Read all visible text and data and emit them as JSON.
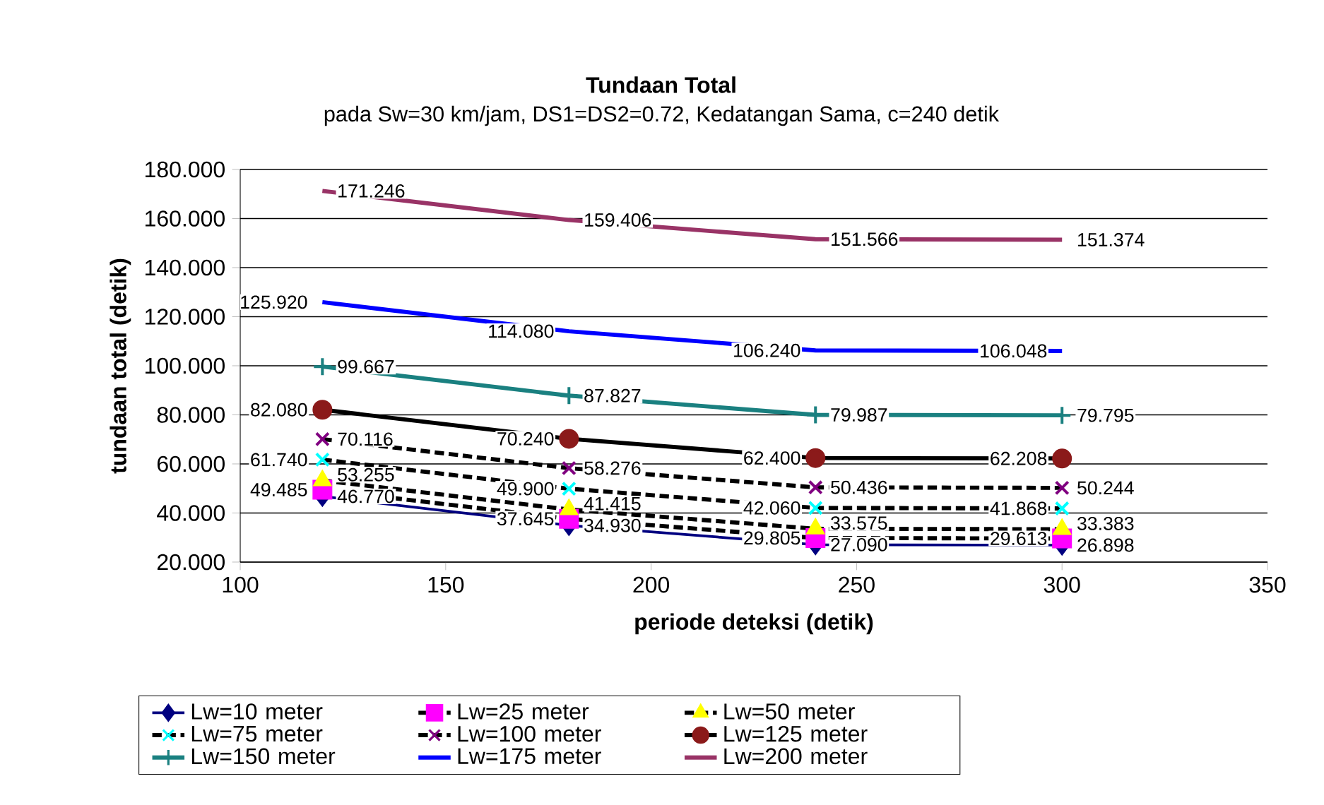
{
  "chart_data": {
    "type": "line",
    "title": "Tundaan Total",
    "subtitle": "pada Sw=30 km/jam, DS1=DS2=0.72, Kedatangan Sama, c=240 detik",
    "xlabel": "periode deteksi (detik)",
    "ylabel": "tundaan total (detik)",
    "x": [
      120,
      180,
      240,
      300
    ],
    "xlim": [
      100,
      350
    ],
    "xticks": [
      100,
      150,
      200,
      250,
      300,
      350
    ],
    "ylim": [
      20,
      180
    ],
    "yticks": [
      {
        "value": 20,
        "label": "20.000"
      },
      {
        "value": 40,
        "label": "40.000"
      },
      {
        "value": 60,
        "label": "60.000"
      },
      {
        "value": 80,
        "label": "80.000"
      },
      {
        "value": 100,
        "label": "100.000"
      },
      {
        "value": 120,
        "label": "120.000"
      },
      {
        "value": 140,
        "label": "140.000"
      },
      {
        "value": 160,
        "label": "160.000"
      },
      {
        "value": 180,
        "label": "180.000"
      }
    ],
    "grid": "y",
    "legend": "bottom",
    "series": [
      {
        "name": "Lw=10 meter",
        "color": "#000080",
        "colors": [
          "#000080",
          "#000080",
          "#000080",
          "#000080"
        ],
        "marker": "diamond",
        "line_style": "solid",
        "values": [
          46.77,
          34.93,
          27.09,
          26.898
        ],
        "value_labels": [
          "46.770",
          "34.930",
          "27.090",
          "26.898"
        ]
      },
      {
        "name": "Lw=25 meter",
        "color": "#000000",
        "colors": [
          "#ff00ff",
          "#ff00ff",
          "#ff00ff",
          "#ff00ff"
        ],
        "marker": "square",
        "line_style": "dashed",
        "values": [
          49.485,
          37.645,
          29.805,
          29.613
        ],
        "value_labels": [
          "49.485",
          "37.645",
          "29.805",
          "29.613"
        ]
      },
      {
        "name": "Lw=50 meter",
        "color": "#000000",
        "colors": [
          "#ffff00",
          "#ffff00",
          "#ffff00",
          "#ffff00"
        ],
        "marker": "triangle",
        "line_style": "dashed",
        "values": [
          53.255,
          41.415,
          33.575,
          33.383
        ],
        "value_labels": [
          "53.255",
          "41.415",
          "33.575",
          "33.383"
        ]
      },
      {
        "name": "Lw=75 meter",
        "color": "#000000",
        "colors": [
          "#00ffff",
          "#00ffff",
          "#00ffff",
          "#00ffff"
        ],
        "marker": "cross",
        "line_style": "dashed",
        "values": [
          61.74,
          49.9,
          42.06,
          41.868
        ],
        "value_labels": [
          "61.740",
          "49.900",
          "42.060",
          "41.868"
        ]
      },
      {
        "name": "Lw=100 meter",
        "color": "#000000",
        "colors": [
          "#800080",
          "#800080",
          "#800080",
          "#800080"
        ],
        "marker": "cross",
        "line_style": "dashed",
        "values": [
          70.116,
          58.276,
          50.436,
          50.244
        ],
        "value_labels": [
          "70.116",
          "58.276",
          "50.436",
          "50.244"
        ]
      },
      {
        "name": "Lw=125 meter",
        "color": "#000000",
        "colors": [
          "#8b1a1a",
          "#8b1a1a",
          "#8b1a1a",
          "#8b1a1a"
        ],
        "marker": "circle",
        "line_style": "solid",
        "values": [
          82.08,
          70.24,
          62.4,
          62.208
        ],
        "value_labels": [
          "82.080",
          "70.240",
          "62.400",
          "62.208"
        ]
      },
      {
        "name": "Lw=150 meter",
        "color": "#1a8080",
        "colors": [
          "#1a8080",
          "#1a8080",
          "#1a8080",
          "#1a8080"
        ],
        "marker": "plus",
        "line_style": "solid",
        "values": [
          99.667,
          87.827,
          79.987,
          79.795
        ],
        "value_labels": [
          "99.667",
          "87.827",
          "79.987",
          "79.795"
        ]
      },
      {
        "name": "Lw=175 meter",
        "color": "#0000ff",
        "marker": "none",
        "line_style": "solid",
        "values": [
          125.92,
          114.08,
          106.24,
          106.048
        ],
        "value_labels": [
          "125.920",
          "114.080",
          "106.240",
          "106.048"
        ]
      },
      {
        "name": "Lw=200 meter",
        "color": "#993366",
        "marker": "none",
        "line_style": "solid",
        "values": [
          171.246,
          159.406,
          151.566,
          151.374
        ],
        "value_labels": [
          "171.246",
          "159.406",
          "151.566",
          "151.374"
        ]
      }
    ]
  }
}
